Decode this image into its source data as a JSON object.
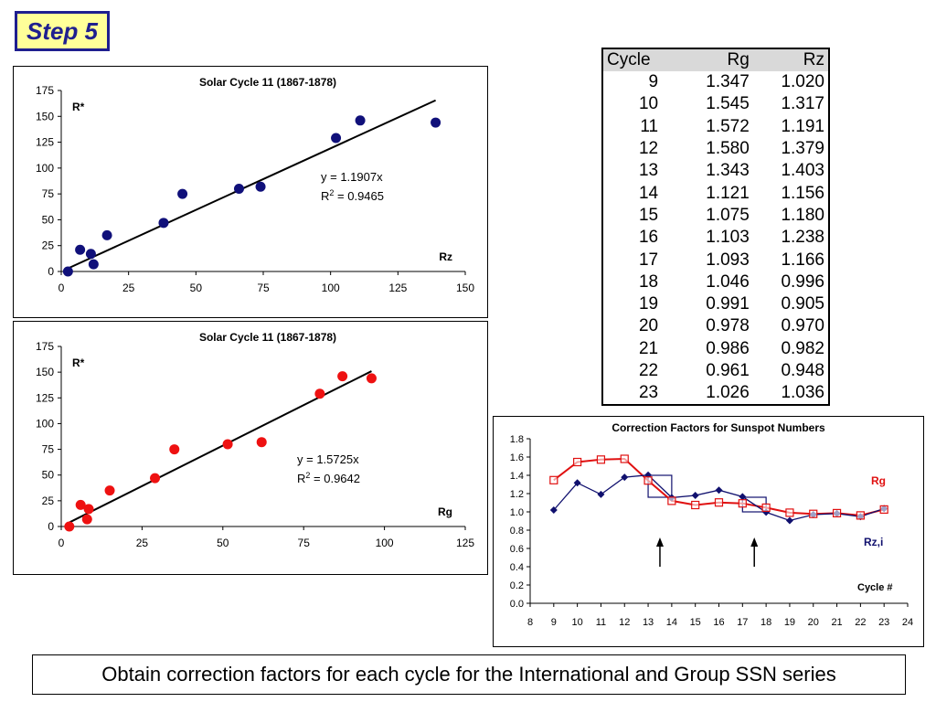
{
  "step_label": "Step 5",
  "caption": "Obtain correction factors for each cycle for the International and Group SSN series",
  "table": {
    "headers": [
      "Cycle",
      "Rg",
      "Rz"
    ],
    "rows": [
      [
        "9",
        "1.347",
        "1.020"
      ],
      [
        "10",
        "1.545",
        "1.317"
      ],
      [
        "11",
        "1.572",
        "1.191"
      ],
      [
        "12",
        "1.580",
        "1.379"
      ],
      [
        "13",
        "1.343",
        "1.403"
      ],
      [
        "14",
        "1.121",
        "1.156"
      ],
      [
        "15",
        "1.075",
        "1.180"
      ],
      [
        "16",
        "1.103",
        "1.238"
      ],
      [
        "17",
        "1.093",
        "1.166"
      ],
      [
        "18",
        "1.046",
        "0.996"
      ],
      [
        "19",
        "0.991",
        "0.905"
      ],
      [
        "20",
        "0.978",
        "0.970"
      ],
      [
        "21",
        "0.986",
        "0.982"
      ],
      [
        "22",
        "0.961",
        "0.948"
      ],
      [
        "23",
        "1.026",
        "1.036"
      ]
    ]
  },
  "chart_data": [
    {
      "type": "scatter",
      "title": "Solar Cycle 11 (1867-1878)",
      "ylabel": "R*",
      "xlabel": "Rz",
      "xlim": [
        0,
        150
      ],
      "ylim": [
        0,
        175
      ],
      "xticks": [
        0,
        25,
        50,
        75,
        100,
        125,
        150
      ],
      "yticks": [
        0,
        25,
        50,
        75,
        100,
        125,
        150,
        175
      ],
      "grid": false,
      "marker_color": "#10107a",
      "points": [
        [
          2.5,
          0
        ],
        [
          7,
          21
        ],
        [
          11,
          17
        ],
        [
          12,
          7
        ],
        [
          17,
          35
        ],
        [
          38,
          47
        ],
        [
          45,
          75
        ],
        [
          66,
          80
        ],
        [
          74,
          82
        ],
        [
          102,
          129
        ],
        [
          111,
          146
        ],
        [
          139,
          144
        ]
      ],
      "fit": {
        "slope": 1.1907,
        "x_range": [
          2.5,
          139
        ],
        "equation": "y = 1.1907x",
        "r2_prefix": "R",
        "r2_sup": "2",
        "r2_value": " = 0.9465"
      }
    },
    {
      "type": "scatter",
      "title": "Solar Cycle 11 (1867-1878)",
      "ylabel": "R*",
      "xlabel": "Rg",
      "xlim": [
        0,
        125
      ],
      "ylim": [
        0,
        175
      ],
      "xticks": [
        0,
        25,
        50,
        75,
        100,
        125
      ],
      "yticks": [
        0,
        25,
        50,
        75,
        100,
        125,
        150,
        175
      ],
      "grid": false,
      "marker_color": "#ee1111",
      "points": [
        [
          2.5,
          0
        ],
        [
          6,
          21
        ],
        [
          8.5,
          17
        ],
        [
          8,
          7
        ],
        [
          15,
          35
        ],
        [
          29,
          47
        ],
        [
          35,
          75
        ],
        [
          51.5,
          80
        ],
        [
          62,
          82
        ],
        [
          80,
          129
        ],
        [
          87,
          146
        ],
        [
          96,
          144
        ]
      ],
      "fit": {
        "slope": 1.5725,
        "x_range": [
          2.5,
          96
        ],
        "equation": "y = 1.5725x",
        "r2_prefix": "R",
        "r2_sup": "2",
        "r2_value": " = 0.9642"
      }
    },
    {
      "type": "line",
      "title": "Correction Factors for Sunspot Numbers",
      "xlabel": "Cycle #",
      "xlim": [
        8,
        24
      ],
      "ylim": [
        0,
        1.8
      ],
      "xticks": [
        8,
        9,
        10,
        11,
        12,
        13,
        14,
        15,
        16,
        17,
        18,
        19,
        20,
        21,
        22,
        23,
        24
      ],
      "yticks": [
        "0.0",
        "0.2",
        "0.4",
        "0.6",
        "0.8",
        "1.0",
        "1.2",
        "1.4",
        "1.6",
        "1.8"
      ],
      "grid": false,
      "x": [
        9,
        10,
        11,
        12,
        13,
        14,
        15,
        16,
        17,
        18,
        19,
        20,
        21,
        22,
        23
      ],
      "series": [
        {
          "name": "Rg",
          "color": "#e01010",
          "marker": "square-open",
          "values": [
            1.347,
            1.545,
            1.572,
            1.58,
            1.343,
            1.121,
            1.075,
            1.103,
            1.093,
            1.046,
            0.991,
            0.978,
            0.986,
            0.961,
            1.026
          ]
        },
        {
          "name": "Rz,i",
          "color": "#10106e",
          "marker": "diamond",
          "values": [
            1.02,
            1.317,
            1.191,
            1.379,
            1.403,
            1.156,
            1.18,
            1.238,
            1.166,
            0.996,
            0.905,
            0.97,
            0.982,
            0.948,
            1.036
          ]
        }
      ],
      "step_outlines": [
        {
          "x_range": [
            13,
            14
          ],
          "y_range": [
            1.16,
            1.4
          ]
        },
        {
          "x_range": [
            17,
            18
          ],
          "y_range": [
            1.0,
            1.16
          ]
        }
      ],
      "arrows": [
        {
          "x": 13.5,
          "y_range": [
            0.4,
            0.72
          ]
        },
        {
          "x": 17.5,
          "y_range": [
            0.4,
            0.72
          ]
        }
      ]
    }
  ]
}
